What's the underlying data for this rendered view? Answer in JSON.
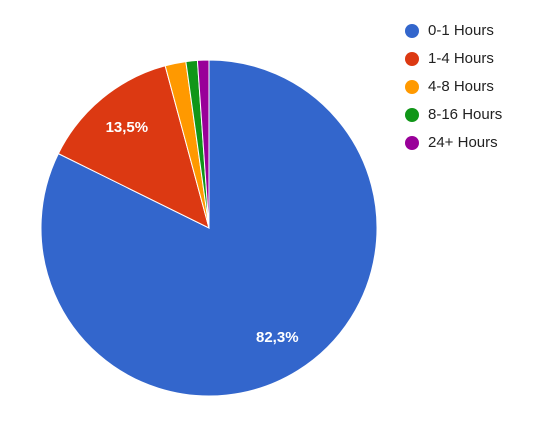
{
  "chart_data": {
    "type": "pie",
    "categories": [
      "0-1 Hours",
      "1-4 Hours",
      "4-8 Hours",
      "8-16 Hours",
      "24+ Hours"
    ],
    "values": [
      82.3,
      13.5,
      2.0,
      1.1,
      1.1
    ],
    "value_labels": [
      "82,3%",
      "13,5%",
      null,
      null,
      null
    ],
    "colors": [
      "#3366cc",
      "#dc3912",
      "#ff9900",
      "#109618",
      "#990099"
    ],
    "legend": "right"
  }
}
